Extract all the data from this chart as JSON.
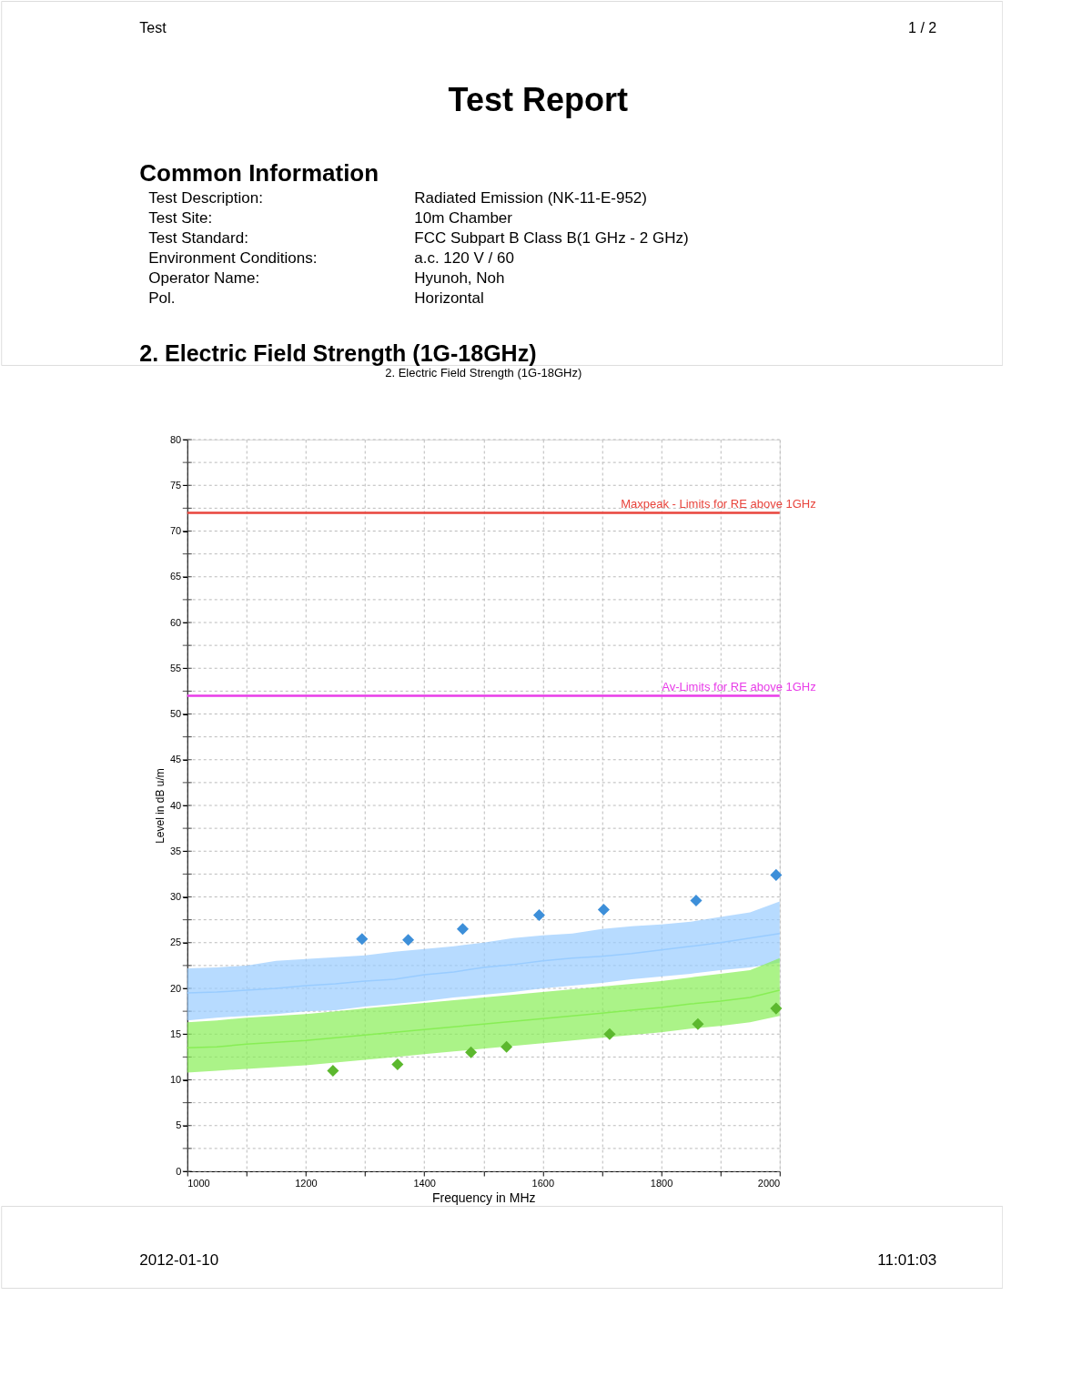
{
  "chart_data": {
    "type": "line",
    "title": "2. Electric Field Strength (1G-18GHz)",
    "xlabel": "Frequency in MHz",
    "ylabel": "Level in dB u/m",
    "xlim": [
      1000,
      2000
    ],
    "ylim": [
      0,
      80
    ],
    "xticks": [
      1000,
      {
        "value": 1100,
        "label": null
      },
      1200,
      {
        "value": 1300,
        "label": null
      },
      1400,
      {
        "value": 1500,
        "label": null
      },
      1600,
      {
        "value": 1700,
        "label": null
      },
      1800,
      {
        "value": 1900,
        "label": null
      },
      2000
    ],
    "yticks": [
      0,
      {
        "value": 2.5,
        "label": null
      },
      5,
      {
        "value": 7.5,
        "label": null
      },
      10,
      {
        "value": 12.5,
        "label": null
      },
      15,
      {
        "value": 17.5,
        "label": null
      },
      20,
      {
        "value": 22.5,
        "label": null
      },
      25,
      {
        "value": 27.5,
        "label": null
      },
      30,
      {
        "value": 32.5,
        "label": null
      },
      35,
      {
        "value": 37.5,
        "label": null
      },
      40,
      {
        "value": 42.5,
        "label": null
      },
      45,
      {
        "value": 47.5,
        "label": null
      },
      50,
      {
        "value": 52.5,
        "label": null
      },
      55,
      {
        "value": 57.5,
        "label": null
      },
      60,
      {
        "value": 62.5,
        "label": null
      },
      65,
      {
        "value": 67.5,
        "label": null
      },
      70,
      {
        "value": 72.5,
        "label": null
      },
      75,
      {
        "value": 77.5,
        "label": null
      },
      80
    ],
    "grid": true,
    "legend": false,
    "series": [
      {
        "color": "#99ccff",
        "x": [
          1000,
          1050,
          1100,
          1150,
          1200,
          1250,
          1300,
          1350,
          1400,
          1450,
          1500,
          1550,
          1600,
          1650,
          1700,
          1750,
          1800,
          1850,
          1900,
          1950,
          2000
        ],
        "values": [
          19.5,
          19.6,
          19.8,
          20.0,
          20.3,
          20.5,
          20.8,
          21.0,
          21.5,
          21.8,
          22.3,
          22.6,
          23.0,
          23.3,
          23.5,
          23.8,
          24.2,
          24.6,
          25.0,
          25.5,
          26.0
        ],
        "lower": [
          16.5,
          16.8,
          17.0,
          17.2,
          17.5,
          17.6,
          18.0,
          18.3,
          18.6,
          19.0,
          19.3,
          19.6,
          20.0,
          20.3,
          20.6,
          21.0,
          21.3,
          21.6,
          22.0,
          22.3,
          22.8
        ],
        "upper": [
          22.2,
          22.3,
          22.5,
          23.0,
          23.2,
          23.4,
          23.6,
          24.0,
          24.3,
          24.6,
          25.0,
          25.5,
          25.8,
          26.0,
          26.5,
          26.8,
          27.0,
          27.3,
          27.8,
          28.3,
          29.5
        ]
      },
      {
        "color": "#88ee55",
        "x": [
          1000,
          1050,
          1100,
          1150,
          1200,
          1250,
          1300,
          1350,
          1400,
          1450,
          1500,
          1550,
          1600,
          1650,
          1700,
          1750,
          1800,
          1850,
          1900,
          1950,
          2000
        ],
        "values": [
          13.5,
          13.6,
          13.9,
          14.1,
          14.3,
          14.6,
          14.9,
          15.2,
          15.5,
          15.8,
          16.1,
          16.4,
          16.7,
          17.0,
          17.3,
          17.6,
          17.9,
          18.3,
          18.6,
          19.0,
          19.8
        ],
        "lower": [
          10.8,
          11.0,
          11.2,
          11.4,
          11.6,
          11.9,
          12.2,
          12.5,
          12.8,
          13.1,
          13.4,
          13.7,
          14.0,
          14.3,
          14.6,
          14.9,
          15.2,
          15.6,
          15.9,
          16.3,
          17.0
        ],
        "upper": [
          16.3,
          16.5,
          16.8,
          17.0,
          17.2,
          17.5,
          17.8,
          18.1,
          18.4,
          18.7,
          19.0,
          19.3,
          19.6,
          19.9,
          20.2,
          20.5,
          20.8,
          21.2,
          21.6,
          22.0,
          23.3
        ]
      },
      {
        "type": "scatter",
        "marker": "diamond",
        "color": "#3d8fd9",
        "x": [
          1295,
          1373,
          1465,
          1594,
          1703,
          1859,
          1994
        ],
        "values": [
          25.4,
          25.3,
          26.5,
          28.0,
          28.6,
          29.6,
          32.4
        ]
      },
      {
        "type": "scatter",
        "marker": "diamond",
        "color": "#5cb82e",
        "x": [
          1246,
          1355,
          1479,
          1539,
          1713,
          1862,
          1994
        ],
        "values": [
          11.0,
          11.7,
          13.0,
          13.6,
          15.0,
          16.1,
          17.8
        ]
      }
    ],
    "ref_lines": [
      {
        "axis": "y",
        "value": 72,
        "label": "Maxpeak - Limits for RE above 1GHz",
        "color": "#e8443c"
      },
      {
        "axis": "y",
        "value": 52,
        "label": "Av-Limits for RE above 1GHz",
        "color": "#e83ce8"
      }
    ],
    "annotations": [
      "Test",
      "1 / 2",
      "Test Report",
      "Common Information",
      "Test Description:",
      "Radiated Emission (NK-11-E-952)",
      "Test Site:",
      "10m Chamber",
      "Test Standard:",
      "FCC Subpart B Class B(1 GHz - 2 GHz)",
      "Environment Conditions:",
      "a.c. 120 V / 60",
      "Operator Name:",
      "Hyunoh, Noh",
      "Pol.",
      "Horizontal",
      "2. Electric Field Strength (1G-18GHz)",
      "2012-01-10",
      "11:01:03"
    ]
  }
}
